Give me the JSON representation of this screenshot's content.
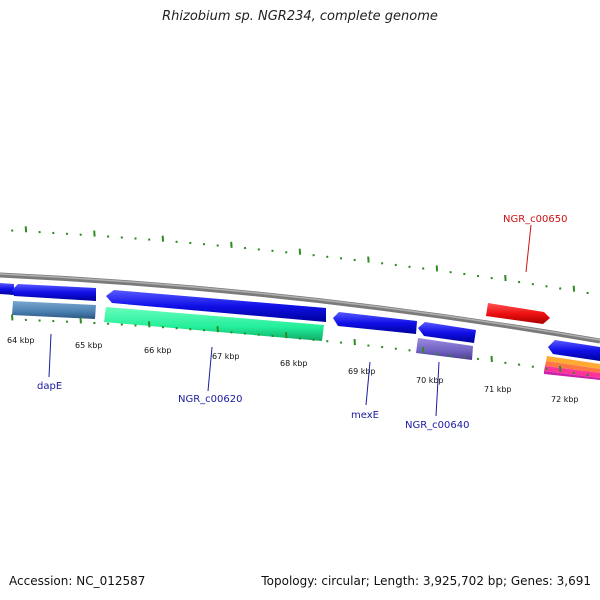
{
  "title": "Rhizobium sp. NGR234, complete genome",
  "footer": {
    "accession": "Accession: NC_012587",
    "summary": "Topology: circular; Length: 3,925,702 bp; Genes: 3,691"
  },
  "colors": {
    "backbone": "#8c8c8c",
    "tick": "#2e8b22",
    "label_blue": "#1a1aa0",
    "label_red": "#cc1111",
    "cds": "#1010e8",
    "gene_steelblue": "#4a7fb0",
    "gene_green": "#22ee99",
    "gene_purple": "#7060c0",
    "gene_red": "#ee1111"
  },
  "tick_labels": [
    "64 kbp",
    "65 kbp",
    "66 kbp",
    "67 kbp",
    "68 kbp",
    "69 kbp",
    "70 kbp",
    "71 kbp",
    "72 kbp"
  ],
  "gene_labels": [
    "dapE",
    "NGR_c00620",
    "mexE",
    "NGR_c00640",
    "NGR_c00650"
  ]
}
